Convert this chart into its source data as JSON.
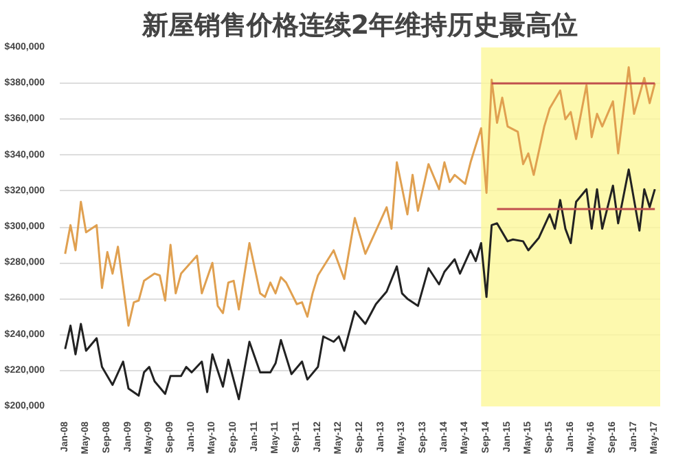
{
  "chart_data": {
    "type": "line",
    "title": "新屋销售价格连续2年维持历史最高位",
    "xlim": [
      "2007-12",
      "2017-06"
    ],
    "ylim": [
      200000,
      400000
    ],
    "yticks": [
      {
        "value": 200000,
        "label": "$200,000"
      },
      {
        "value": 220000,
        "label": "$220,000"
      },
      {
        "value": 240000,
        "label": "$240,000"
      },
      {
        "value": 260000,
        "label": "$260,000"
      },
      {
        "value": 280000,
        "label": "$280,000"
      },
      {
        "value": 300000,
        "label": "$300,000"
      },
      {
        "value": 320000,
        "label": "$320,000"
      },
      {
        "value": 340000,
        "label": "$340,000"
      },
      {
        "value": 360000,
        "label": "$360,000"
      },
      {
        "value": 380000,
        "label": "$380,000"
      },
      {
        "value": 400000,
        "label": "$400,000"
      }
    ],
    "xticks": [
      {
        "value": "2008-01",
        "label": "Jan-08"
      },
      {
        "value": "2008-05",
        "label": "May-08"
      },
      {
        "value": "2008-09",
        "label": "Sep-08"
      },
      {
        "value": "2009-01",
        "label": "Jan-09"
      },
      {
        "value": "2009-05",
        "label": "May-09"
      },
      {
        "value": "2009-09",
        "label": "Sep-09"
      },
      {
        "value": "2010-01",
        "label": "Jan-10"
      },
      {
        "value": "2010-05",
        "label": "May-10"
      },
      {
        "value": "2010-09",
        "label": "Sep-10"
      },
      {
        "value": "2011-01",
        "label": "Jan-11"
      },
      {
        "value": "2011-05",
        "label": "May-11"
      },
      {
        "value": "2011-09",
        "label": "Sep-11"
      },
      {
        "value": "2012-01",
        "label": "Jan-12"
      },
      {
        "value": "2012-05",
        "label": "May-12"
      },
      {
        "value": "2012-09",
        "label": "Sep-12"
      },
      {
        "value": "2013-01",
        "label": "Jan-13"
      },
      {
        "value": "2013-05",
        "label": "May-13"
      },
      {
        "value": "2013-09",
        "label": "Sep-13"
      },
      {
        "value": "2014-01",
        "label": "Jan-14"
      },
      {
        "value": "2014-05",
        "label": "May-14"
      },
      {
        "value": "2014-09",
        "label": "Sep-14"
      },
      {
        "value": "2015-01",
        "label": "Jan-15"
      },
      {
        "value": "2015-05",
        "label": "May-15"
      },
      {
        "value": "2015-09",
        "label": "Sep-15"
      },
      {
        "value": "2016-01",
        "label": "Jan-16"
      },
      {
        "value": "2016-05",
        "label": "May-16"
      },
      {
        "value": "2016-09",
        "label": "Sep-16"
      },
      {
        "value": "2017-01",
        "label": "Jan-17"
      },
      {
        "value": "2017-05",
        "label": "May-17"
      }
    ],
    "grid": "y",
    "bands": [
      {
        "axis": "x",
        "from": "2014-08",
        "to": "2017-06",
        "color": "#fdf79a"
      }
    ],
    "series": [
      {
        "color": "#e0a050",
        "x": [
          "2008-01",
          "2008-02",
          "2008-03",
          "2008-04",
          "2008-05",
          "2008-07",
          "2008-08",
          "2008-09",
          "2008-10",
          "2008-11",
          "2009-01",
          "2009-02",
          "2009-03",
          "2009-04",
          "2009-06",
          "2009-07",
          "2009-08",
          "2009-09",
          "2009-10",
          "2009-11",
          "2010-02",
          "2010-03",
          "2010-05",
          "2010-06",
          "2010-07",
          "2010-08",
          "2010-09",
          "2010-10",
          "2010-12",
          "2011-02",
          "2011-03",
          "2011-04",
          "2011-05",
          "2011-06",
          "2011-07",
          "2011-09",
          "2011-10",
          "2011-11",
          "2011-12",
          "2012-01",
          "2012-04",
          "2012-06",
          "2012-08",
          "2012-10",
          "2013-02",
          "2013-03",
          "2013-04",
          "2013-06",
          "2013-07",
          "2013-08",
          "2013-10",
          "2013-12",
          "2014-01",
          "2014-02",
          "2014-03",
          "2014-05",
          "2014-06",
          "2014-08",
          "2014-09",
          "2014-10",
          "2014-11",
          "2014-12",
          "2015-01",
          "2015-03",
          "2015-04",
          "2015-05",
          "2015-06",
          "2015-08",
          "2015-09",
          "2015-11",
          "2015-12",
          "2016-01",
          "2016-02",
          "2016-04",
          "2016-05",
          "2016-06",
          "2016-07",
          "2016-09",
          "2016-10",
          "2016-12",
          "2017-01",
          "2017-03",
          "2017-04",
          "2017-05"
        ],
        "values": [
          285000,
          301000,
          287000,
          314000,
          297000,
          301000,
          266000,
          286000,
          274000,
          289000,
          245000,
          258000,
          259000,
          270000,
          274000,
          273000,
          259000,
          290000,
          263000,
          274000,
          284000,
          263000,
          280000,
          256000,
          252000,
          269000,
          270000,
          254000,
          291000,
          263000,
          261000,
          269000,
          263000,
          272000,
          269000,
          257000,
          258000,
          250000,
          263000,
          273000,
          287000,
          271000,
          305000,
          285000,
          311000,
          299000,
          336000,
          307000,
          329000,
          309000,
          335000,
          321000,
          336000,
          325000,
          329000,
          324000,
          336000,
          355000,
          319000,
          382000,
          358000,
          372000,
          356000,
          353000,
          335000,
          341000,
          329000,
          356000,
          366000,
          376000,
          360000,
          364000,
          349000,
          379000,
          350000,
          363000,
          356000,
          370000,
          341000,
          389000,
          363000,
          383000,
          369000,
          380000
        ]
      },
      {
        "color": "#222222",
        "x": [
          "2008-01",
          "2008-02",
          "2008-03",
          "2008-04",
          "2008-05",
          "2008-07",
          "2008-08",
          "2008-10",
          "2008-12",
          "2009-01",
          "2009-03",
          "2009-04",
          "2009-05",
          "2009-06",
          "2009-08",
          "2009-09",
          "2009-11",
          "2009-12",
          "2010-01",
          "2010-03",
          "2010-04",
          "2010-05",
          "2010-07",
          "2010-08",
          "2010-10",
          "2010-12",
          "2011-02",
          "2011-04",
          "2011-05",
          "2011-06",
          "2011-08",
          "2011-10",
          "2011-11",
          "2012-01",
          "2012-02",
          "2012-04",
          "2012-05",
          "2012-06",
          "2012-08",
          "2012-10",
          "2012-12",
          "2013-02",
          "2013-04",
          "2013-05",
          "2013-06",
          "2013-08",
          "2013-10",
          "2013-12",
          "2014-01",
          "2014-03",
          "2014-04",
          "2014-06",
          "2014-07",
          "2014-08",
          "2014-09",
          "2014-10",
          "2014-11",
          "2015-01",
          "2015-02",
          "2015-04",
          "2015-05",
          "2015-07",
          "2015-09",
          "2015-10",
          "2015-11",
          "2015-12",
          "2016-01",
          "2016-02",
          "2016-04",
          "2016-05",
          "2016-06",
          "2016-07",
          "2016-09",
          "2016-10",
          "2016-12",
          "2017-02",
          "2017-03",
          "2017-04",
          "2017-05"
        ],
        "values": [
          232000,
          245000,
          229000,
          246000,
          231000,
          238000,
          222000,
          212000,
          225000,
          210000,
          206000,
          219000,
          222000,
          214000,
          207000,
          217000,
          217000,
          222000,
          219000,
          225000,
          208000,
          229000,
          211000,
          226000,
          204000,
          236000,
          219000,
          219000,
          224000,
          237000,
          218000,
          225000,
          215000,
          222000,
          239000,
          236000,
          239000,
          231000,
          253000,
          246000,
          257000,
          264000,
          278000,
          263000,
          260000,
          256000,
          277000,
          268000,
          275000,
          282000,
          274000,
          287000,
          281000,
          291000,
          261000,
          301000,
          302000,
          292000,
          293000,
          292000,
          287000,
          294000,
          307000,
          299000,
          315000,
          299000,
          291000,
          314000,
          321000,
          299000,
          321000,
          299000,
          323000,
          302000,
          332000,
          298000,
          321000,
          311000,
          321000
        ]
      },
      {
        "color": "#c0504d",
        "x": [
          "2014-10",
          "2017-05"
        ],
        "values": [
          380000,
          380000
        ]
      },
      {
        "color": "#c0504d",
        "x": [
          "2014-11",
          "2017-05"
        ],
        "values": [
          310000,
          310000
        ]
      }
    ]
  }
}
